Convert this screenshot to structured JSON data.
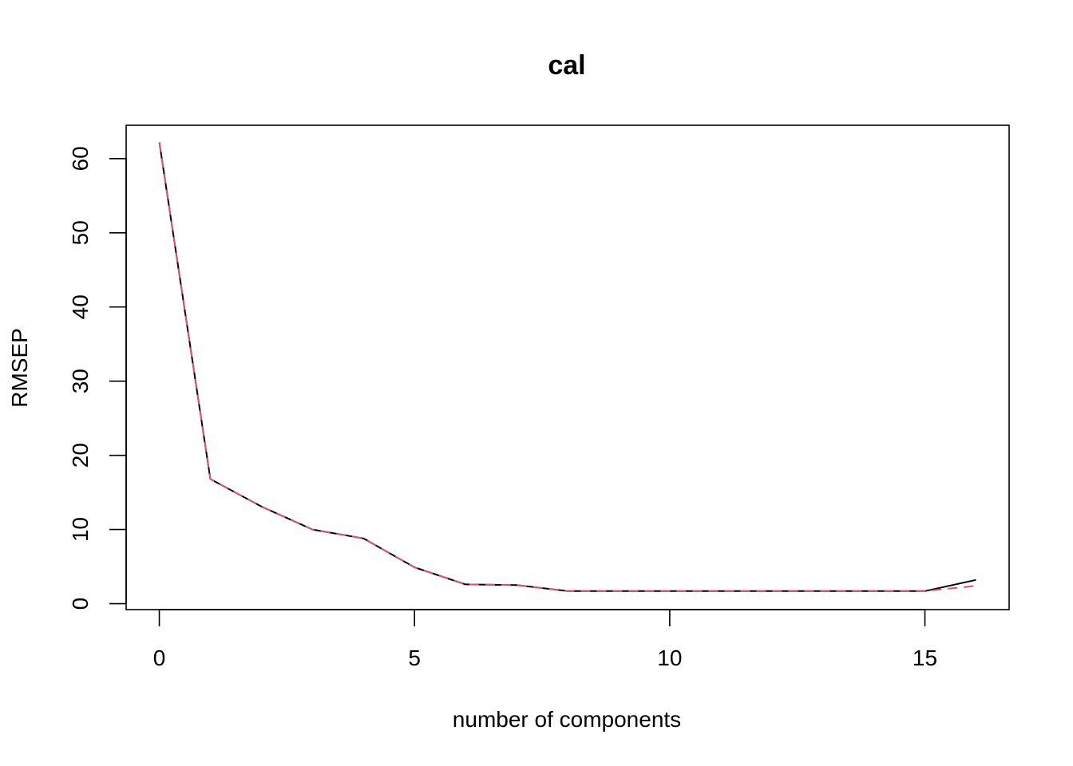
{
  "chart_data": {
    "type": "line",
    "title": "cal",
    "xlabel": "number of components",
    "ylabel": "RMSEP",
    "xlim": [
      -0.65,
      16.65
    ],
    "ylim": [
      -0.8,
      64.5
    ],
    "x_ticks": [
      0,
      5,
      10,
      15
    ],
    "y_ticks": [
      0,
      10,
      20,
      30,
      40,
      50,
      60
    ],
    "grid": false,
    "legend": "none",
    "x": [
      0,
      1,
      2,
      3,
      4,
      5,
      6,
      7,
      8,
      9,
      10,
      11,
      12,
      13,
      14,
      15,
      16
    ],
    "series": [
      {
        "color": "#000000",
        "dash": "solid",
        "values": [
          62.2,
          16.8,
          13.1,
          10.0,
          8.8,
          4.9,
          2.6,
          2.5,
          1.7,
          1.7,
          1.7,
          1.7,
          1.7,
          1.7,
          1.7,
          1.7,
          3.2
        ]
      },
      {
        "color": "#DF536B",
        "dash": "dashed",
        "values": [
          62.2,
          16.8,
          13.1,
          10.0,
          8.8,
          4.9,
          2.6,
          2.5,
          1.7,
          1.7,
          1.7,
          1.7,
          1.7,
          1.7,
          1.7,
          1.7,
          2.4
        ]
      }
    ]
  }
}
